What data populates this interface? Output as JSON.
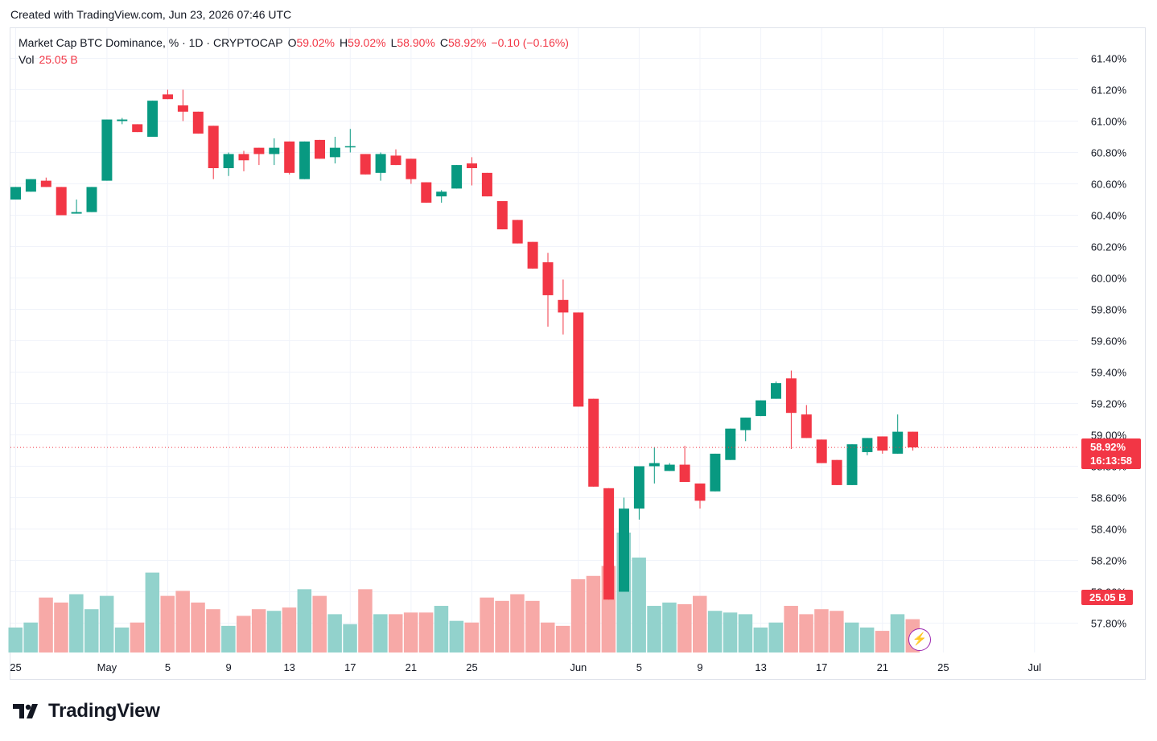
{
  "header": {
    "created_text": "Created with TradingView.com, Jun 23, 2026 07:46 UTC"
  },
  "legend": {
    "symbol": "Market Cap BTC Dominance, % · 1D · CRYPTOCAP",
    "o_label": "O",
    "o_value": "59.02%",
    "h_label": "H",
    "h_value": "59.02%",
    "l_label": "L",
    "l_value": "58.90%",
    "c_label": "C",
    "c_value": "58.92%",
    "change": "−0.10 (−0.16%)",
    "vol_label": "Vol",
    "vol_value": "25.05 B"
  },
  "price_tag": {
    "price": "58.92%",
    "countdown": "16:13:58"
  },
  "vol_tag": {
    "value": "25.05 B"
  },
  "brand": {
    "name": "TradingView"
  },
  "colors": {
    "up": "#089981",
    "down": "#f23645",
    "up_vol": "#92d2cc",
    "down_vol": "#f7a9a7",
    "grid": "#f0f3fa"
  },
  "chart_data": {
    "type": "candlestick",
    "y_axis": {
      "min": 57.7,
      "max": 61.5,
      "ticks": [
        57.8,
        58.0,
        58.2,
        58.4,
        58.6,
        58.8,
        59.0,
        59.2,
        59.4,
        59.6,
        59.8,
        60.0,
        60.2,
        60.4,
        60.6,
        60.8,
        61.0,
        61.2,
        61.4
      ],
      "tick_labels": [
        "57.80%",
        "58.00%",
        "58.20%",
        "58.40%",
        "58.60%",
        "58.80%",
        "59.00%",
        "59.20%",
        "59.40%",
        "59.60%",
        "59.80%",
        "60.00%",
        "60.20%",
        "60.40%",
        "60.60%",
        "60.80%",
        "61.00%",
        "61.20%",
        "61.40%"
      ],
      "position": "right"
    },
    "x_axis": {
      "ticks": [
        {
          "index": 0,
          "label": "25"
        },
        {
          "index": 6,
          "label": "May"
        },
        {
          "index": 10,
          "label": "5"
        },
        {
          "index": 14,
          "label": "9"
        },
        {
          "index": 18,
          "label": "13"
        },
        {
          "index": 22,
          "label": "17"
        },
        {
          "index": 26,
          "label": "21"
        },
        {
          "index": 30,
          "label": "25"
        },
        {
          "index": 37,
          "label": "Jun"
        },
        {
          "index": 41,
          "label": "5"
        },
        {
          "index": 45,
          "label": "9"
        },
        {
          "index": 49,
          "label": "13"
        },
        {
          "index": 53,
          "label": "17"
        },
        {
          "index": 57,
          "label": "21"
        },
        {
          "index": 61,
          "label": "25"
        },
        {
          "index": 67,
          "label": "Jul"
        }
      ]
    },
    "last_price": 58.92,
    "grid": true,
    "candles": [
      {
        "o": 60.5,
        "h": 60.58,
        "l": 60.5,
        "c": 60.58,
        "v": 15
      },
      {
        "o": 60.55,
        "h": 60.63,
        "l": 60.55,
        "c": 60.63,
        "v": 18
      },
      {
        "o": 60.62,
        "h": 60.64,
        "l": 60.58,
        "c": 60.58,
        "v": 33
      },
      {
        "o": 60.58,
        "h": 60.58,
        "l": 60.4,
        "c": 60.4,
        "v": 30
      },
      {
        "o": 60.41,
        "h": 60.5,
        "l": 60.41,
        "c": 60.42,
        "v": 35
      },
      {
        "o": 60.42,
        "h": 60.58,
        "l": 60.42,
        "c": 60.58,
        "v": 26
      },
      {
        "o": 60.62,
        "h": 61.01,
        "l": 60.62,
        "c": 61.01,
        "v": 34
      },
      {
        "o": 61.0,
        "h": 61.02,
        "l": 60.98,
        "c": 61.01,
        "v": 15
      },
      {
        "o": 60.98,
        "h": 60.98,
        "l": 60.93,
        "c": 60.93,
        "v": 18
      },
      {
        "o": 60.9,
        "h": 61.13,
        "l": 60.9,
        "c": 61.13,
        "v": 48
      },
      {
        "o": 61.17,
        "h": 61.2,
        "l": 61.14,
        "c": 61.14,
        "v": 34
      },
      {
        "o": 61.1,
        "h": 61.2,
        "l": 61.0,
        "c": 61.06,
        "v": 37
      },
      {
        "o": 61.06,
        "h": 61.06,
        "l": 60.92,
        "c": 60.92,
        "v": 30
      },
      {
        "o": 60.97,
        "h": 60.97,
        "l": 60.63,
        "c": 60.7,
        "v": 26
      },
      {
        "o": 60.7,
        "h": 60.8,
        "l": 60.65,
        "c": 60.79,
        "v": 16
      },
      {
        "o": 60.79,
        "h": 60.81,
        "l": 60.68,
        "c": 60.75,
        "v": 22
      },
      {
        "o": 60.83,
        "h": 60.83,
        "l": 60.72,
        "c": 60.79,
        "v": 26
      },
      {
        "o": 60.79,
        "h": 60.89,
        "l": 60.72,
        "c": 60.83,
        "v": 25
      },
      {
        "o": 60.87,
        "h": 60.87,
        "l": 60.66,
        "c": 60.67,
        "v": 27
      },
      {
        "o": 60.63,
        "h": 60.87,
        "l": 60.63,
        "c": 60.87,
        "v": 38
      },
      {
        "o": 60.88,
        "h": 60.88,
        "l": 60.76,
        "c": 60.76,
        "v": 34
      },
      {
        "o": 60.77,
        "h": 60.9,
        "l": 60.73,
        "c": 60.83,
        "v": 23
      },
      {
        "o": 60.84,
        "h": 60.95,
        "l": 60.8,
        "c": 60.84,
        "v": 17
      },
      {
        "o": 60.79,
        "h": 60.79,
        "l": 60.66,
        "c": 60.66,
        "v": 38
      },
      {
        "o": 60.67,
        "h": 60.8,
        "l": 60.62,
        "c": 60.79,
        "v": 23
      },
      {
        "o": 60.78,
        "h": 60.82,
        "l": 60.72,
        "c": 60.72,
        "v": 23
      },
      {
        "o": 60.76,
        "h": 60.76,
        "l": 60.6,
        "c": 60.63,
        "v": 24
      },
      {
        "o": 60.61,
        "h": 60.61,
        "l": 60.48,
        "c": 60.48,
        "v": 24
      },
      {
        "o": 60.52,
        "h": 60.56,
        "l": 60.48,
        "c": 60.55,
        "v": 28
      },
      {
        "o": 60.57,
        "h": 60.72,
        "l": 60.57,
        "c": 60.72,
        "v": 19
      },
      {
        "o": 60.73,
        "h": 60.77,
        "l": 60.59,
        "c": 60.7,
        "v": 18
      },
      {
        "o": 60.67,
        "h": 60.67,
        "l": 60.52,
        "c": 60.52,
        "v": 33
      },
      {
        "o": 60.49,
        "h": 60.49,
        "l": 60.31,
        "c": 60.31,
        "v": 31
      },
      {
        "o": 60.37,
        "h": 60.37,
        "l": 60.22,
        "c": 60.22,
        "v": 35
      },
      {
        "o": 60.23,
        "h": 60.23,
        "l": 60.06,
        "c": 60.06,
        "v": 31
      },
      {
        "o": 60.1,
        "h": 60.16,
        "l": 59.69,
        "c": 59.89,
        "v": 18
      },
      {
        "o": 59.86,
        "h": 59.99,
        "l": 59.64,
        "c": 59.78,
        "v": 16
      },
      {
        "o": 59.78,
        "h": 59.78,
        "l": 59.18,
        "c": 59.18,
        "v": 44
      },
      {
        "o": 59.23,
        "h": 59.23,
        "l": 58.67,
        "c": 58.67,
        "v": 46
      },
      {
        "o": 58.66,
        "h": 58.66,
        "l": 57.95,
        "c": 57.95,
        "v": 52
      },
      {
        "o": 58.0,
        "h": 58.6,
        "l": 58.0,
        "c": 58.53,
        "v": 72
      },
      {
        "o": 58.53,
        "h": 58.8,
        "l": 58.46,
        "c": 58.8,
        "v": 57
      },
      {
        "o": 58.8,
        "h": 58.92,
        "l": 58.69,
        "c": 58.82,
        "v": 28
      },
      {
        "o": 58.77,
        "h": 58.82,
        "l": 58.77,
        "c": 58.81,
        "v": 30
      },
      {
        "o": 58.81,
        "h": 58.93,
        "l": 58.7,
        "c": 58.7,
        "v": 29
      },
      {
        "o": 58.69,
        "h": 58.69,
        "l": 58.53,
        "c": 58.58,
        "v": 34
      },
      {
        "o": 58.64,
        "h": 58.88,
        "l": 58.64,
        "c": 58.88,
        "v": 25
      },
      {
        "o": 58.84,
        "h": 59.04,
        "l": 58.84,
        "c": 59.04,
        "v": 24
      },
      {
        "o": 59.03,
        "h": 59.11,
        "l": 58.96,
        "c": 59.11,
        "v": 23
      },
      {
        "o": 59.12,
        "h": 59.22,
        "l": 59.12,
        "c": 59.22,
        "v": 15
      },
      {
        "o": 59.23,
        "h": 59.34,
        "l": 59.23,
        "c": 59.33,
        "v": 18
      },
      {
        "o": 59.36,
        "h": 59.41,
        "l": 58.91,
        "c": 59.14,
        "v": 28
      },
      {
        "o": 59.13,
        "h": 59.19,
        "l": 58.98,
        "c": 58.98,
        "v": 23
      },
      {
        "o": 58.97,
        "h": 58.97,
        "l": 58.82,
        "c": 58.82,
        "v": 26
      },
      {
        "o": 58.84,
        "h": 58.84,
        "l": 58.68,
        "c": 58.68,
        "v": 25
      },
      {
        "o": 58.68,
        "h": 58.94,
        "l": 58.68,
        "c": 58.94,
        "v": 18
      },
      {
        "o": 58.89,
        "h": 58.98,
        "l": 58.87,
        "c": 58.98,
        "v": 15
      },
      {
        "o": 58.99,
        "h": 58.99,
        "l": 58.88,
        "c": 58.9,
        "v": 13
      },
      {
        "o": 58.88,
        "h": 59.13,
        "l": 58.88,
        "c": 59.02,
        "v": 23
      },
      {
        "o": 59.02,
        "h": 59.02,
        "l": 58.9,
        "c": 58.92,
        "v": 20
      }
    ]
  }
}
